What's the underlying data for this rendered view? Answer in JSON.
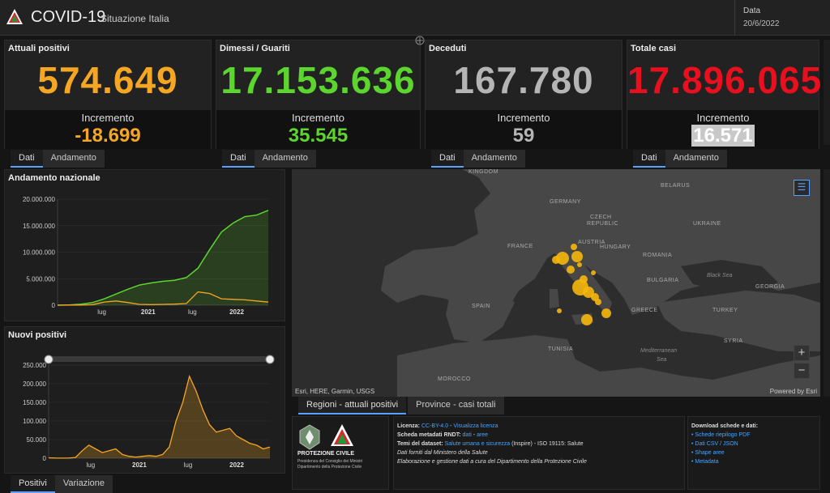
{
  "header": {
    "title": "COVID-19",
    "subtitle": "Situazione Italia",
    "date_label": "Data",
    "date_value": "20/6/2022"
  },
  "cards": [
    {
      "label": "Attuali positivi",
      "value": "574.649",
      "inc_label": "Incremento",
      "inc_value": "-18.699",
      "color": "#f5a623"
    },
    {
      "label": "Dimessi / Guariti",
      "value": "17.153.636",
      "inc_label": "Incremento",
      "inc_value": "35.545",
      "color": "#5cd62f"
    },
    {
      "label": "Deceduti",
      "value": "167.780",
      "inc_label": "Incremento",
      "inc_value": "59",
      "color": "#b5b5b5"
    },
    {
      "label": "Totale casi",
      "value": "17.896.065",
      "inc_label": "Incremento",
      "inc_value": "16.571",
      "color": "#e8101e"
    }
  ],
  "tabs": {
    "dati": "Dati",
    "andamento": "Andamento",
    "positivi": "Positivi",
    "variazione": "Variazione",
    "regioni": "Regioni - attuali positivi",
    "province": "Province - casi totali"
  },
  "chart_data": [
    {
      "type": "line",
      "title": "Andamento nazionale",
      "ylim": [
        0,
        20000000
      ],
      "yticks": [
        "20.000.000",
        "15.000.000",
        "10.000.000",
        "5.000.000",
        "0"
      ],
      "xticks": [
        "lug",
        "2021",
        "lug",
        "2022"
      ],
      "series": [
        {
          "name": "Totale casi",
          "color": "#5cd62f",
          "values": [
            0,
            50000,
            200000,
            500000,
            1200000,
            2100000,
            3000000,
            3800000,
            4200000,
            4500000,
            4700000,
            5200000,
            7000000,
            10500000,
            13800000,
            15500000,
            16700000,
            17000000,
            17896065
          ]
        },
        {
          "name": "Attuali positivi",
          "color": "#f5a623",
          "values": [
            0,
            50000,
            20000,
            100000,
            600000,
            800000,
            500000,
            150000,
            100000,
            150000,
            200000,
            300000,
            2500000,
            2200000,
            1200000,
            1100000,
            1000000,
            800000,
            574649
          ]
        }
      ]
    },
    {
      "type": "line",
      "title": "Nuovi positivi",
      "ylim": [
        0,
        250000
      ],
      "yticks": [
        "250.000",
        "200.000",
        "150.000",
        "100.000",
        "50.000",
        "0"
      ],
      "xticks": [
        "lug",
        "2021",
        "lug",
        "2022"
      ],
      "series": [
        {
          "name": "Nuovi positivi",
          "color": "#f5a623",
          "values": [
            1000,
            500,
            300,
            500,
            2000,
            20000,
            35000,
            25000,
            15000,
            20000,
            25000,
            10000,
            5000,
            3000,
            5000,
            7000,
            5000,
            10000,
            30000,
            100000,
            150000,
            220000,
            180000,
            130000,
            90000,
            70000,
            75000,
            80000,
            60000,
            50000,
            40000,
            35000,
            25000,
            30000
          ]
        }
      ]
    }
  ],
  "map": {
    "labels": [
      "KINGDOM",
      "BELARUS",
      "GERMANY",
      "CZECH",
      "REPUBLIC",
      "UKRAINE",
      "FRANCE",
      "AUSTRIA",
      "HUNGARY",
      "ROMANIA",
      "Black Sea",
      "BULGARIA",
      "GEORGIA",
      "SPAIN",
      "GREECE",
      "TURKEY",
      "TUNISIA",
      "SYRIA",
      "MOROCCO",
      "Mediterranean",
      "Sea"
    ],
    "attribution": "Esri, HERE, Garmin, USGS",
    "powered": "Powered by Esri",
    "zoom_in": "+",
    "zoom_out": "−"
  },
  "footer": {
    "org_line1": "PROTEZIONE CIVILE",
    "org_line2": "Presidenza del Consiglio dei Ministri",
    "org_line3": "Dipartimento della Protezione Civile",
    "licenza_label": "Licenza:",
    "licenza_value": "CC-BY-4.0",
    "licenza_sep": " - ",
    "licenza_link": "Visualizza licenza",
    "rndt_label": "Scheda metadati RNDT:",
    "rndt_dati": "dati",
    "rndt_sep": " - ",
    "rndt_aree": "aree",
    "temi_label": "Temi del dataset:",
    "temi_value": "Salute umana e sicurezza",
    "temi_rest": " (Inspire) - ISO 19115: Salute",
    "fonte": "Dati forniti dal Ministero della Salute",
    "elab": "Elaborazione e gestione dati a cura del Dipartimento della Protezione Civile",
    "dl_title": "Download schede e dati:",
    "dl_items": [
      "Schede riepilogo PDF",
      "Dati CSV / JSON",
      "Shape aree",
      "Metadata"
    ]
  }
}
